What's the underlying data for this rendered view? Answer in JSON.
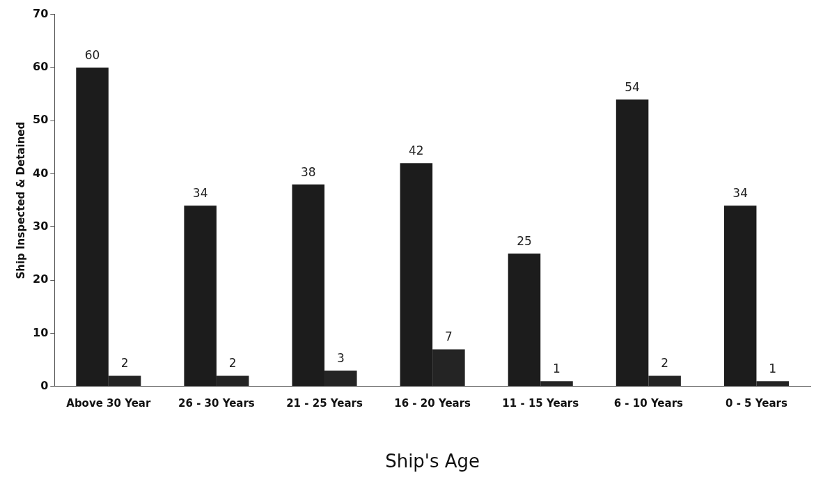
{
  "chart_data": {
    "type": "bar",
    "xlabel": "Ship's Age",
    "ylabel": "Ship Inspected & Detained",
    "categories": [
      "Above 30 Year",
      "26 - 30 Years",
      "21 - 25 Years",
      "16 - 20 Years",
      "11 - 15 Years",
      "6 - 10 Years",
      "0 - 5 Years"
    ],
    "series": [
      {
        "color": "#1c1c1c",
        "values": [
          60,
          34,
          38,
          42,
          25,
          54,
          34
        ]
      },
      {
        "color": "#242424",
        "values": [
          2,
          2,
          3,
          7,
          1,
          2,
          1
        ]
      }
    ],
    "ylim": [
      0,
      70
    ],
    "yticks": [
      0,
      10,
      20,
      30,
      40,
      50,
      60,
      70
    ],
    "grid": false,
    "legend": false,
    "data_labels": true
  }
}
